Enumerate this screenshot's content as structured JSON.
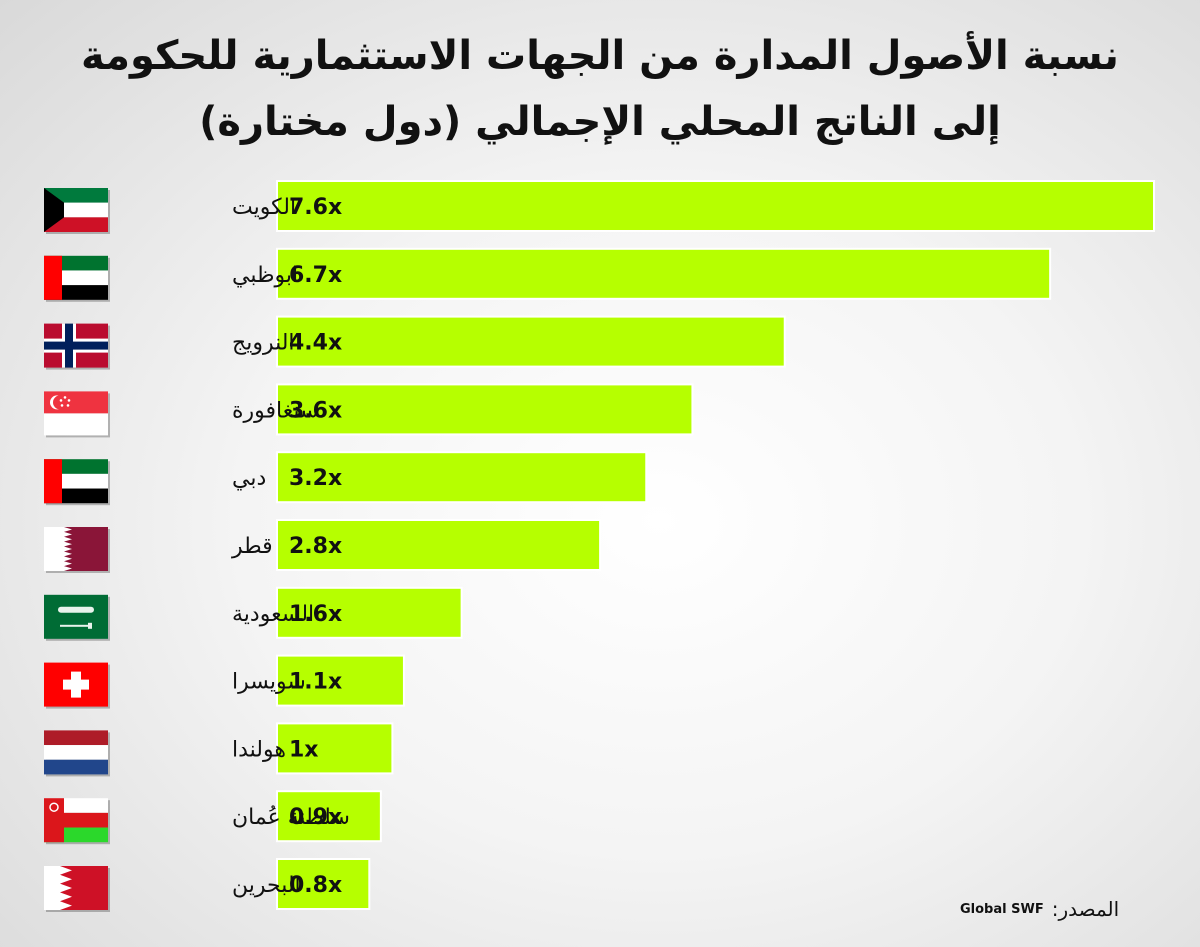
{
  "chart_data": {
    "type": "bar",
    "orientation": "horizontal",
    "title": "نسبة الأصول المدارة من الجهات الاستثمارية للحكومة",
    "subtitle": "إلى الناتج المحلي الإجمالي (دول مختارة)",
    "categories": [
      "الكويت",
      "ابوظبي",
      "النرويج",
      "سنغافورة",
      "دبي",
      "قطر",
      "السعودية",
      "سويسرا",
      "هولندا",
      "سلطنة عُمان",
      "البحرين"
    ],
    "values": [
      7.6,
      6.7,
      4.4,
      3.6,
      3.2,
      2.8,
      1.6,
      1.1,
      1,
      0.9,
      0.8
    ],
    "labels": [
      "7.6x",
      "6.7x",
      "4.4x",
      "3.6x",
      "3.2x",
      "2.8x",
      "1.6x",
      "1.1x",
      "1x",
      "0.9x",
      "0.8x"
    ],
    "flags": [
      "kuwait-flag",
      "uae-flag",
      "norway-flag",
      "singapore-flag",
      "uae-flag",
      "qatar-flag",
      "saudi-flag",
      "switzerland-flag",
      "netherlands-flag",
      "oman-flag",
      "bahrain-flag"
    ],
    "bar_color": "#b6ff00",
    "grid": false,
    "legend": "none"
  },
  "source": {
    "label": "المصدر:",
    "value": "Global SWF"
  }
}
